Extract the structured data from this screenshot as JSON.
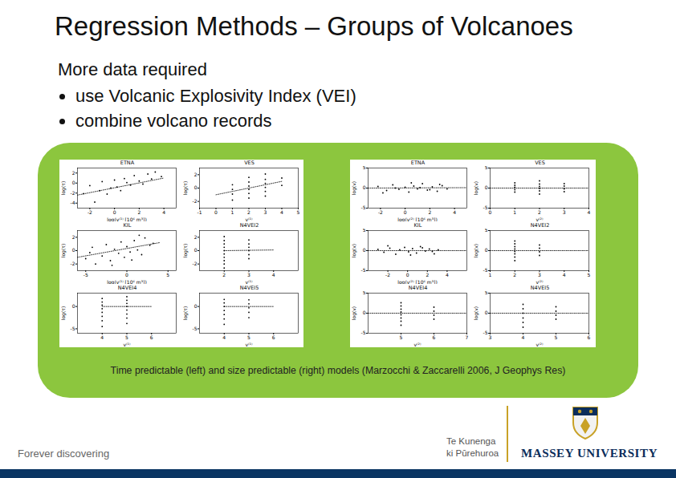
{
  "slide": {
    "title": "Regression Methods – Groups of Volcanoes",
    "intro": "More data required",
    "bullets": [
      "use Volcanic Explosivity Index (VEI)",
      "combine volcano records"
    ],
    "caption": "Time predictable (left) and size predictable (right) models (Marzocchi & Zaccarelli 2006, J Geophys Res)",
    "footer": {
      "tagline": "Forever discovering",
      "maori": [
        "Te Kunenga",
        "ki Pūrehuroa"
      ],
      "university": "MASSEY UNIVERSITY"
    }
  },
  "chart_data": [
    {
      "type": "scatter",
      "title": "ETNA",
      "x_label": "log(v⁽¹⁾ [10⁶ m³])",
      "y_label": "log(τ)",
      "xlim": [
        -3,
        5
      ],
      "ylim": [
        -5,
        3
      ],
      "xticks": [
        -2,
        0,
        2,
        4
      ],
      "yticks": [
        -4,
        -2,
        0,
        2
      ],
      "x": [
        -2.5,
        -2,
        -1.6,
        -1.2,
        -1,
        -0.6,
        -0.3,
        0,
        0.2,
        0.5,
        0.8,
        1,
        1.3,
        1.6,
        2,
        2.3,
        2.7,
        3,
        3.3,
        3.8
      ],
      "y": [
        -2.1,
        -0.5,
        -3.8,
        -1.5,
        0.3,
        -2.2,
        -1,
        0.6,
        -0.8,
        -1.5,
        0.9,
        0.1,
        -0.4,
        1.5,
        0.4,
        -0.2,
        1.8,
        0.8,
        2.2,
        1.3
      ],
      "fit": {
        "x": [
          -3,
          4
        ],
        "y": [
          -2.4,
          1.0
        ]
      },
      "marker": "dot",
      "line_style": "dotted"
    },
    {
      "type": "scatter",
      "title": "VES",
      "x_label": "v⁽¹⁾",
      "y_label": "log(τ)",
      "xlim": [
        -1,
        5
      ],
      "ylim": [
        -3,
        3
      ],
      "xticks": [
        -1,
        0,
        1,
        2,
        3,
        4,
        5
      ],
      "yticks": [
        -2,
        0,
        2
      ],
      "x": [
        1,
        1,
        1,
        1,
        2,
        2,
        2,
        2,
        2,
        2,
        3,
        3,
        3,
        3,
        3,
        3,
        4,
        4
      ],
      "y": [
        -1.8,
        -0.9,
        -0.2,
        0.5,
        -1.5,
        -0.8,
        -0.2,
        0.3,
        0.9,
        1.6,
        -1.2,
        -0.5,
        0.1,
        0.7,
        1.3,
        2.1,
        0.4,
        1.5
      ],
      "fit": {
        "x": [
          0,
          4
        ],
        "y": [
          -1,
          1
        ]
      },
      "marker": "dot",
      "line_style": "dotted"
    },
    {
      "type": "scatter",
      "title": "KIL",
      "x_label": "log(v⁽¹⁾ [10⁶ m³])",
      "y_label": "log(τ)",
      "xlim": [
        -6,
        6
      ],
      "ylim": [
        -3,
        3
      ],
      "xticks": [
        -5,
        0,
        5
      ],
      "yticks": [
        -2,
        0,
        2
      ],
      "x": [
        -5,
        -4.2,
        -3.8,
        -3,
        -2.5,
        -2,
        -1.5,
        -1,
        -0.7,
        -0.3,
        0,
        0.4,
        0.9,
        1.3,
        1.8,
        2.2,
        2.8,
        3.2,
        -4.5,
        -1.8,
        0.6,
        1.5
      ],
      "y": [
        -1.2,
        0.5,
        -2,
        -0.8,
        0.9,
        -1.5,
        0.2,
        -0.4,
        1.3,
        -1,
        0.6,
        -0.2,
        1.5,
        0.1,
        -0.6,
        1.9,
        0.8,
        1.1,
        -0.3,
        -2.2,
        -1.4,
        2.3
      ],
      "fit": {
        "x": [
          -6,
          4
        ],
        "y": [
          -1,
          1.2
        ]
      },
      "marker": "dot",
      "line_style": "dotted"
    },
    {
      "type": "scatter",
      "title": "N4VEI2",
      "x_label": "v⁽¹⁾",
      "y_label": "log(τ)",
      "xlim": [
        1,
        5
      ],
      "ylim": [
        -3,
        3
      ],
      "xticks": [
        2,
        3,
        4
      ],
      "yticks": [
        -2,
        0,
        2
      ],
      "x": [
        2,
        2,
        2,
        2,
        2,
        2,
        2,
        2,
        2,
        2,
        3,
        3,
        3,
        3,
        3,
        3
      ],
      "y": [
        -2.6,
        -2,
        -1.5,
        -1,
        -0.5,
        0,
        0.5,
        1,
        1.5,
        2.1,
        -1.2,
        -0.6,
        0,
        0.5,
        1,
        1.6
      ],
      "fit": {
        "x": [
          2,
          4
        ],
        "y": [
          0,
          0.1
        ]
      },
      "marker": "dot",
      "line_style": "dotted"
    },
    {
      "type": "scatter",
      "title": "N4VEI4",
      "x_label": "v⁽¹⁾",
      "y_label": "log(τ)",
      "xlim": [
        3,
        7
      ],
      "ylim": [
        -6,
        3
      ],
      "xticks": [
        4,
        5,
        6
      ],
      "yticks": [
        -5,
        0
      ],
      "x": [
        4,
        4,
        4,
        4,
        4,
        4,
        4,
        4,
        5,
        5,
        5,
        5,
        5,
        5,
        5,
        5
      ],
      "y": [
        -4.5,
        -3.2,
        -2.2,
        -1.3,
        -0.5,
        0.3,
        1,
        1.8,
        -3.8,
        -2.6,
        -1.7,
        -0.8,
        0,
        0.7,
        1.4,
        2.2
      ],
      "fit": {
        "x": [
          4,
          6
        ],
        "y": [
          0,
          0
        ]
      },
      "marker": "dot",
      "line_style": "dotted"
    },
    {
      "type": "scatter",
      "title": "N4VEI5",
      "x_label": "v⁽¹⁾",
      "y_label": "log(τ)",
      "xlim": [
        3,
        7
      ],
      "ylim": [
        -6,
        3
      ],
      "xticks": [
        4,
        5,
        6
      ],
      "yticks": [
        -5,
        0
      ],
      "x": [
        4,
        4,
        4,
        4,
        4,
        4,
        4,
        5,
        5,
        5,
        5,
        5
      ],
      "y": [
        -4,
        -2.8,
        -1.8,
        -0.9,
        0,
        0.8,
        1.6,
        -2.5,
        -1.3,
        -0.3,
        0.6,
        1.5
      ],
      "fit": {
        "x": [
          4,
          6
        ],
        "y": [
          0,
          0
        ]
      },
      "marker": "dot",
      "line_style": "dotted"
    },
    {
      "type": "scatter",
      "title": "ETNA",
      "x_label": "log(v⁽²⁾ [10⁶ m³])",
      "y_label": "log(v)",
      "xlim": [
        -3,
        5
      ],
      "ylim": [
        -5,
        5
      ],
      "xticks": [
        -2,
        0,
        2,
        4
      ],
      "yticks": [
        -5,
        0,
        5
      ],
      "x": [
        -2.2,
        -1.5,
        -1,
        -0.5,
        0,
        0.3,
        0.7,
        1,
        1.4,
        1.8,
        2.2,
        2.6,
        3,
        -1.8,
        0.5,
        1.2,
        2,
        2.8,
        3.4,
        -0.8
      ],
      "y": [
        0.4,
        -0.6,
        0.8,
        -0.3,
        0.2,
        -1,
        0.5,
        -0.2,
        1.1,
        -0.5,
        0.3,
        -0.8,
        0.6,
        -1.2,
        1.3,
        0.1,
        -0.4,
        0.9,
        -0.2,
        0
      ],
      "fit": {
        "x": [
          -3,
          5
        ],
        "y": [
          0,
          0.1
        ]
      },
      "marker": "dot",
      "line_style": "dotted"
    },
    {
      "type": "scatter",
      "title": "VES",
      "x_label": "v⁽²⁾",
      "y_label": "log(v)",
      "xlim": [
        0,
        4
      ],
      "ylim": [
        -5,
        5
      ],
      "xticks": [
        0,
        1,
        2,
        3,
        4
      ],
      "yticks": [
        -5,
        0,
        5
      ],
      "x": [
        1,
        1,
        1,
        1,
        1,
        2,
        2,
        2,
        2,
        2,
        2,
        3,
        3,
        3,
        3
      ],
      "y": [
        -1,
        -0.4,
        0.2,
        0.7,
        1.3,
        -1.5,
        -0.7,
        -0.1,
        0.4,
        1,
        1.8,
        -0.9,
        -0.2,
        0.5,
        1.1
      ],
      "fit": {
        "x": [
          0,
          4
        ],
        "y": [
          0,
          0
        ]
      },
      "marker": "dot",
      "line_style": "dotted"
    },
    {
      "type": "scatter",
      "title": "KIL",
      "x_label": "log(v⁽²⁾ [10⁶ m³])",
      "y_label": "log(v)",
      "xlim": [
        -4,
        6
      ],
      "ylim": [
        -5,
        5
      ],
      "xticks": [
        -2,
        0,
        2,
        4
      ],
      "yticks": [
        -5,
        0,
        5
      ],
      "x": [
        -3,
        -2.4,
        -1.8,
        -1.2,
        -0.8,
        -0.3,
        0.1,
        0.5,
        0.9,
        1.3,
        1.8,
        2.2,
        2.7,
        3.1,
        -2,
        0.3,
        1.5,
        2.5
      ],
      "y": [
        0.3,
        -0.4,
        0.6,
        -0.9,
        0.2,
        0.8,
        -0.3,
        0.5,
        -0.6,
        1,
        -0.1,
        0.4,
        -0.8,
        0.2,
        1.2,
        -1.1,
        0.7,
        -0.2
      ],
      "fit": {
        "x": [
          -4,
          6
        ],
        "y": [
          0,
          0
        ]
      },
      "marker": "dot",
      "line_style": "dotted"
    },
    {
      "type": "scatter",
      "title": "N4VEI2",
      "x_label": "v⁽²⁾",
      "y_label": "log(v)",
      "xlim": [
        1,
        5
      ],
      "ylim": [
        -5,
        5
      ],
      "xticks": [
        1,
        2,
        3,
        4,
        5
      ],
      "yticks": [
        -5,
        0,
        5
      ],
      "x": [
        2,
        2,
        2,
        2,
        2,
        2,
        2,
        2,
        3,
        3,
        3,
        3
      ],
      "y": [
        -2.5,
        -1.6,
        -0.8,
        -0.2,
        0.4,
        1,
        1.7,
        2.4,
        -1.2,
        -0.3,
        0.6,
        1.4
      ],
      "fit": {
        "x": [
          1,
          5
        ],
        "y": [
          0,
          0
        ]
      },
      "marker": "dot",
      "line_style": "dotted"
    },
    {
      "type": "scatter",
      "title": "N4VEI4",
      "x_label": "v⁽²⁾",
      "y_label": "log(v)",
      "xlim": [
        4,
        7
      ],
      "ylim": [
        -5,
        5
      ],
      "xticks": [
        5,
        6,
        7
      ],
      "yticks": [
        -5,
        0,
        5
      ],
      "x": [
        5,
        5,
        5,
        5,
        5,
        5,
        5,
        5,
        6,
        6,
        6,
        6
      ],
      "y": [
        -3,
        -2,
        -1.2,
        -0.4,
        0.3,
        1,
        1.8,
        2.6,
        -1.5,
        -0.5,
        0.5,
        1.5
      ],
      "fit": {
        "x": [
          4,
          7
        ],
        "y": [
          0,
          0
        ]
      },
      "marker": "dot",
      "line_style": "dotted"
    },
    {
      "type": "scatter",
      "title": "N4VEI5",
      "x_label": "v⁽²⁾",
      "y_label": "log(v)",
      "xlim": [
        3,
        6
      ],
      "ylim": [
        -5,
        5
      ],
      "xticks": [
        3,
        4,
        5,
        6
      ],
      "yticks": [
        -5,
        0,
        5
      ],
      "x": [
        4,
        4,
        4,
        4,
        4,
        4,
        5,
        5,
        5,
        5
      ],
      "y": [
        -3.5,
        -2.3,
        -1.2,
        0,
        1.1,
        2.2,
        -1.5,
        -0.5,
        0.5,
        1.6
      ],
      "fit": {
        "x": [
          3,
          6
        ],
        "y": [
          0,
          0
        ]
      },
      "marker": "dot",
      "line_style": "dotted"
    }
  ]
}
